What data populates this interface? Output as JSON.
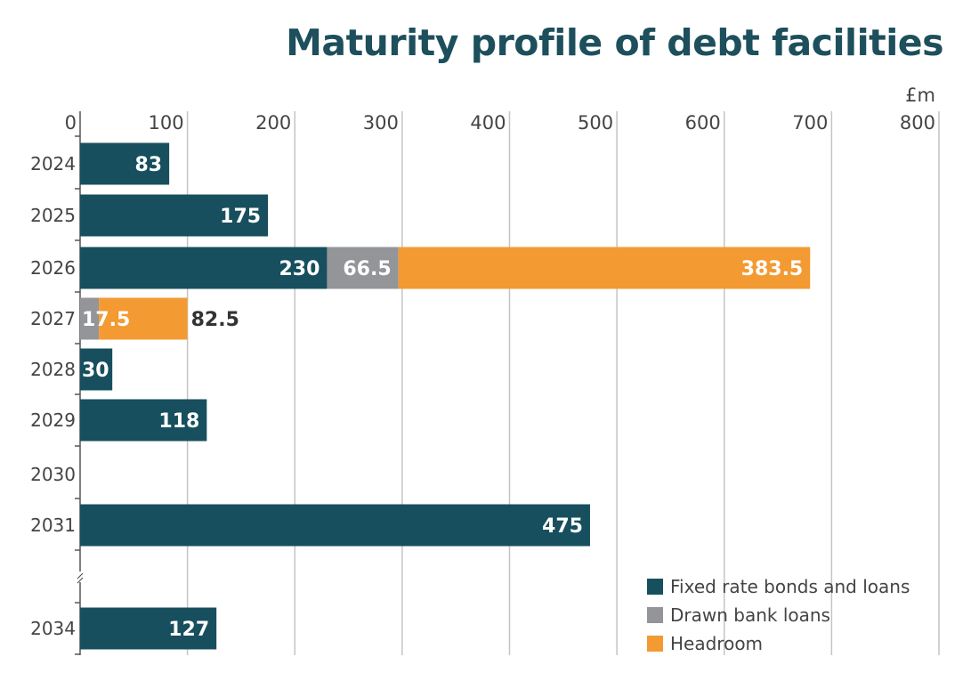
{
  "chart_data": {
    "type": "bar",
    "orientation": "horizontal",
    "stacked": true,
    "title": "Maturity profile of debt facilities",
    "unit_label": "£m",
    "xlim": [
      0,
      800
    ],
    "xticks": [
      "0",
      "100",
      "200",
      "300",
      "400",
      "500",
      "600",
      "700",
      "800"
    ],
    "grid": true,
    "axis_break_between": [
      "2031",
      "2034"
    ],
    "legend_position": "bottom-right",
    "categories": [
      "2024",
      "2025",
      "2026",
      "2027",
      "2028",
      "2029",
      "2030",
      "2031",
      "2034"
    ],
    "series": [
      {
        "name": "Fixed rate bonds and loans",
        "color": "#174f5e",
        "values": [
          83,
          175,
          230,
          0,
          30,
          118,
          0,
          475,
          127
        ],
        "labels": [
          "83",
          "175",
          "230",
          "",
          "30",
          "118",
          "",
          "475",
          "127"
        ]
      },
      {
        "name": "Drawn bank loans",
        "color": "#939598",
        "values": [
          0,
          0,
          66.5,
          17.5,
          0,
          0,
          0,
          0,
          0
        ],
        "labels": [
          "",
          "",
          "66.5",
          "17.5",
          "",
          "",
          "",
          "",
          ""
        ]
      },
      {
        "name": "Headroom",
        "color": "#f39a33",
        "values": [
          0,
          0,
          383.5,
          82.5,
          0,
          0,
          0,
          0,
          0
        ],
        "labels": [
          "",
          "",
          "383.5",
          "82.5",
          "",
          "",
          "",
          "",
          ""
        ]
      }
    ]
  }
}
